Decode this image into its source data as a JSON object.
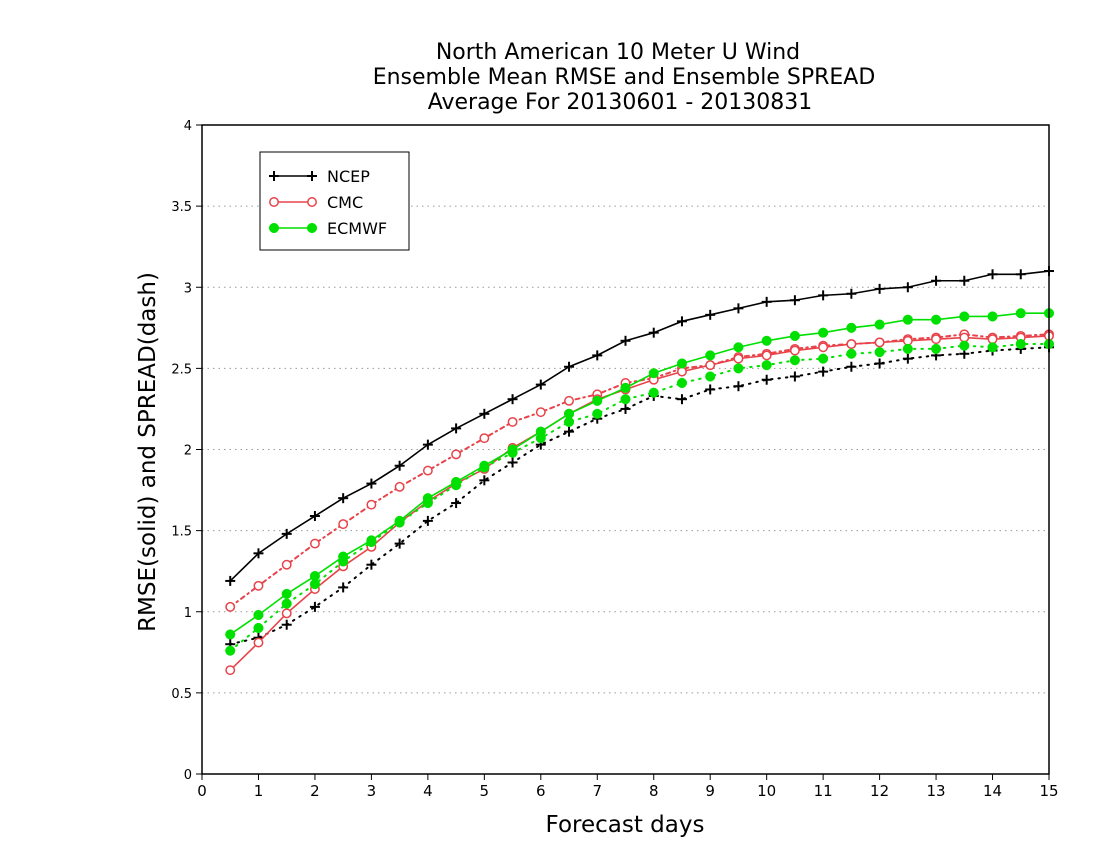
{
  "chart_data": {
    "type": "line",
    "title": [
      "North American 10 Meter U Wind",
      "Ensemble Mean RMSE and Ensemble SPREAD",
      "Average For 20130601 - 20130831"
    ],
    "xlabel": "Forecast days",
    "ylabel": "RMSE(solid) and SPREAD(dash)",
    "xlim": [
      0,
      15
    ],
    "ylim": [
      0,
      4
    ],
    "xticks": [
      "0",
      "1",
      "2",
      "3",
      "4",
      "5",
      "6",
      "7",
      "8",
      "9",
      "10",
      "11",
      "12",
      "13",
      "14",
      "15"
    ],
    "yticks": [
      "0",
      "0.5",
      "1",
      "1.5",
      "2",
      "2.5",
      "3",
      "3.5",
      "4"
    ],
    "grid": true,
    "legend_position": "top-left",
    "x": [
      0.5,
      1,
      1.5,
      2,
      2.5,
      3,
      3.5,
      4,
      4.5,
      5,
      5.5,
      6,
      6.5,
      7,
      7.5,
      8,
      8.5,
      9,
      9.5,
      10,
      10.5,
      11,
      11.5,
      12,
      12.5,
      13,
      13.5,
      14,
      14.5,
      15
    ],
    "series": [
      {
        "name": "NCEP",
        "color": "#000000",
        "marker": "plus",
        "rmse": [
          1.19,
          1.36,
          1.48,
          1.59,
          1.7,
          1.79,
          1.9,
          2.03,
          2.13,
          2.22,
          2.31,
          2.4,
          2.51,
          2.58,
          2.67,
          2.72,
          2.79,
          2.83,
          2.87,
          2.91,
          2.92,
          2.95,
          2.96,
          2.99,
          3.0,
          3.04,
          3.04,
          3.08,
          3.08,
          3.1
        ],
        "spread": [
          0.8,
          0.84,
          0.92,
          1.03,
          1.15,
          1.29,
          1.42,
          1.56,
          1.67,
          1.81,
          1.92,
          2.03,
          2.11,
          2.19,
          2.25,
          2.33,
          2.31,
          2.37,
          2.39,
          2.43,
          2.45,
          2.48,
          2.51,
          2.53,
          2.56,
          2.58,
          2.59,
          2.61,
          2.62,
          2.63
        ]
      },
      {
        "name": "CMC",
        "color": "#e8434a",
        "marker": "open-circle",
        "rmse": [
          0.64,
          0.81,
          0.99,
          1.14,
          1.28,
          1.4,
          1.55,
          1.68,
          1.79,
          1.88,
          2.01,
          2.11,
          2.22,
          2.31,
          2.37,
          2.43,
          2.48,
          2.52,
          2.56,
          2.58,
          2.61,
          2.63,
          2.65,
          2.66,
          2.67,
          2.68,
          2.69,
          2.68,
          2.69,
          2.7
        ],
        "spread": [
          1.03,
          1.16,
          1.29,
          1.42,
          1.54,
          1.66,
          1.77,
          1.87,
          1.97,
          2.07,
          2.17,
          2.23,
          2.3,
          2.34,
          2.41,
          2.44,
          2.5,
          2.52,
          2.57,
          2.59,
          2.62,
          2.64,
          2.65,
          2.66,
          2.68,
          2.69,
          2.71,
          2.69,
          2.7,
          2.71
        ]
      },
      {
        "name": "ECMWF",
        "color": "#00e000",
        "marker": "filled-circle",
        "rmse": [
          0.86,
          0.98,
          1.11,
          1.22,
          1.34,
          1.44,
          1.56,
          1.7,
          1.8,
          1.9,
          2.0,
          2.11,
          2.22,
          2.3,
          2.38,
          2.47,
          2.53,
          2.58,
          2.63,
          2.67,
          2.7,
          2.72,
          2.75,
          2.77,
          2.8,
          2.8,
          2.82,
          2.82,
          2.84,
          2.84
        ],
        "spread": [
          0.76,
          0.9,
          1.05,
          1.17,
          1.31,
          1.43,
          1.55,
          1.67,
          1.78,
          1.89,
          1.98,
          2.07,
          2.17,
          2.22,
          2.31,
          2.35,
          2.41,
          2.45,
          2.5,
          2.52,
          2.55,
          2.56,
          2.59,
          2.6,
          2.62,
          2.62,
          2.64,
          2.63,
          2.65,
          2.65
        ]
      }
    ]
  }
}
